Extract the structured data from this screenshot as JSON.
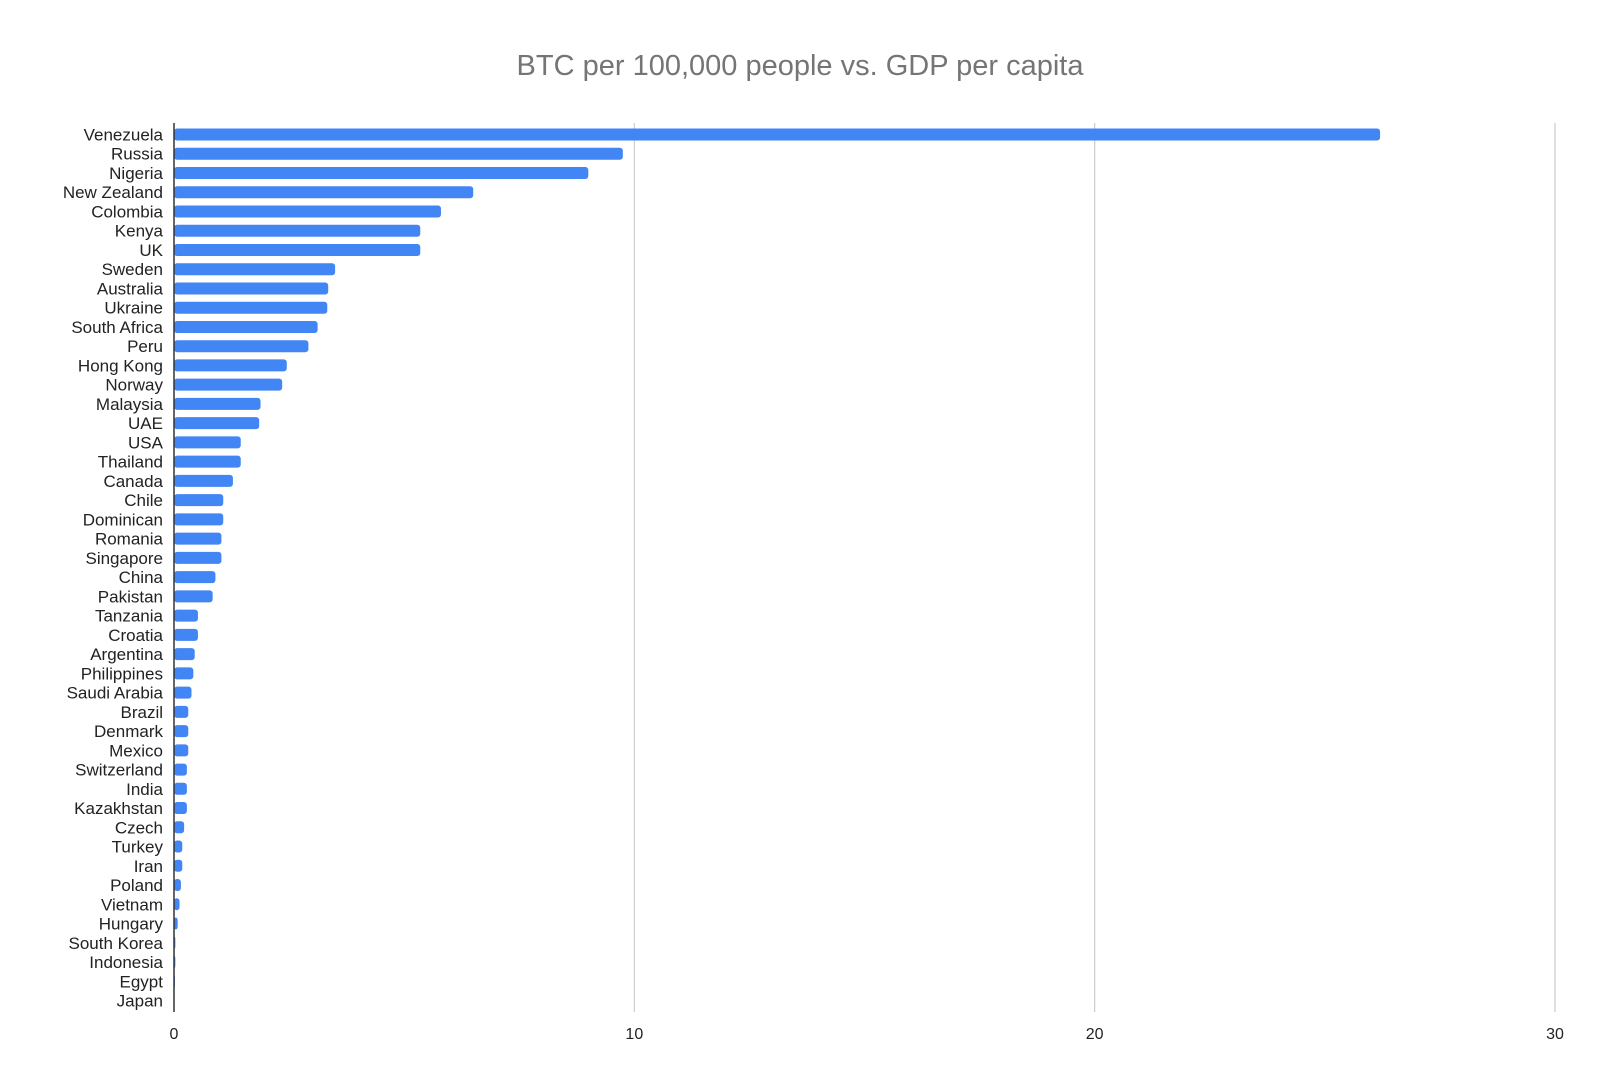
{
  "chart_data": {
    "type": "bar",
    "orientation": "horizontal",
    "title": "BTC per 100,000 people vs. GDP per capita",
    "xlabel": "",
    "ylabel": "",
    "xlim": [
      0,
      30
    ],
    "xticks": [
      0,
      10,
      20,
      30
    ],
    "grid": "vertical",
    "legend": "none",
    "bar_color": "#4285f4",
    "categories": [
      "Venezuela",
      "Russia",
      "Nigeria",
      "New Zealand",
      "Colombia",
      "Kenya",
      "UK",
      "Sweden",
      "Australia",
      "Ukraine",
      "South Africa",
      "Peru",
      "Hong Kong",
      "Norway",
      "Malaysia",
      "UAE",
      "USA",
      "Thailand",
      "Canada",
      "Chile",
      "Dominican",
      "Romania",
      "Singapore",
      "China",
      "Pakistan",
      "Tanzania",
      "Croatia",
      "Argentina",
      "Philippines",
      "Saudi Arabia",
      "Brazil",
      "Denmark",
      "Mexico",
      "Switzerland",
      "India",
      "Kazakhstan",
      "Czech",
      "Turkey",
      "Iran",
      "Poland",
      "Vietnam",
      "Hungary",
      "South Korea",
      "Indonesia",
      "Egypt",
      "Japan"
    ],
    "values": [
      26.2,
      9.75,
      9.0,
      6.5,
      5.8,
      5.35,
      5.35,
      3.5,
      3.35,
      3.33,
      3.12,
      2.92,
      2.45,
      2.35,
      1.88,
      1.85,
      1.45,
      1.45,
      1.28,
      1.07,
      1.07,
      1.03,
      1.03,
      0.9,
      0.84,
      0.52,
      0.52,
      0.45,
      0.42,
      0.38,
      0.31,
      0.31,
      0.31,
      0.28,
      0.28,
      0.28,
      0.22,
      0.18,
      0.18,
      0.15,
      0.12,
      0.08,
      0.03,
      0.03,
      0.02,
      0.0
    ]
  }
}
